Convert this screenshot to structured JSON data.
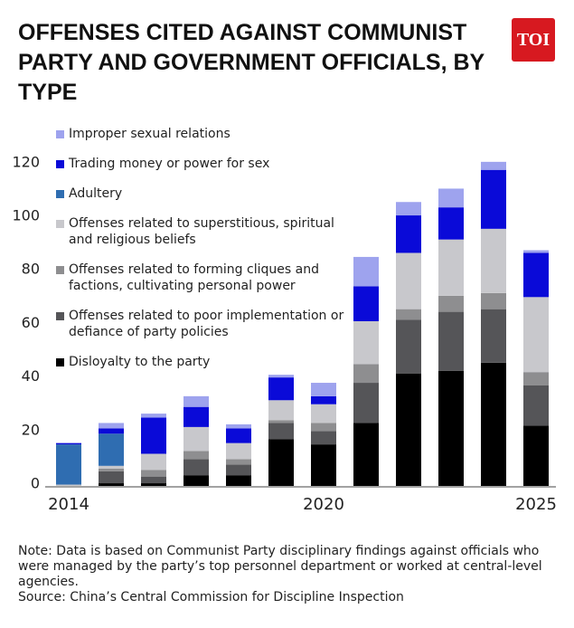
{
  "chart_data": {
    "type": "stacked_bar",
    "title": "OFFENSES CITED AGAINST COMMUNIST PARTY AND GOVERNMENT OFFICIALS, BY TYPE",
    "logo": "TOI",
    "categories": [
      "2014",
      null,
      null,
      null,
      null,
      null,
      "2020",
      null,
      null,
      null,
      null,
      "2025"
    ],
    "series": [
      {
        "name": "Improper sexual relations",
        "color": "#9ea3ee",
        "values": [
          0,
          2,
          1.5,
          4,
          1.5,
          1,
          5,
          11,
          5,
          7,
          3,
          1
        ]
      },
      {
        "name": "Trading money or power for sex",
        "color": "#0a0ad8",
        "values": [
          0.5,
          2,
          13.5,
          7.5,
          5.5,
          8.5,
          3,
          13,
          14,
          12,
          22,
          16.5
        ]
      },
      {
        "name": "Adultery",
        "color": "#2f6db1",
        "values": [
          15,
          12,
          0,
          0,
          0,
          0,
          0,
          0,
          0,
          0,
          0,
          0
        ]
      },
      {
        "name": "Offenses related to superstitious, spiritual and religious beliefs",
        "color": "#c8c8cc",
        "values": [
          0.5,
          1,
          6,
          9,
          6,
          7.5,
          7,
          16,
          21,
          21,
          24,
          28
        ]
      },
      {
        "name": "Offenses related to forming cliques and factions, cultivating personal power",
        "color": "#8e8e90",
        "values": [
          0,
          1,
          2.5,
          3,
          2,
          1,
          3,
          7,
          4,
          6,
          6,
          5
        ]
      },
      {
        "name": "Offenses related to poor implementation or defiance of party policies",
        "color": "#555558",
        "values": [
          0,
          4.5,
          2.5,
          6,
          4,
          6,
          5,
          15,
          20,
          22,
          20,
          15
        ]
      },
      {
        "name": "Disloyalty to the party",
        "color": "#000000",
        "values": [
          0,
          1,
          1,
          4,
          4,
          17.5,
          15.5,
          23.5,
          42,
          43,
          46,
          22.5
        ]
      }
    ],
    "ylim": [
      0,
      120
    ],
    "yticks": [
      0,
      20,
      40,
      60,
      80,
      100,
      120
    ],
    "grid": false,
    "note": "Note: Data is based on Communist Party disciplinary findings against officials who were managed by the party’s top personnel department or worked at central-level agencies.",
    "source": "Source: China’s Central Commission for Discipline Inspection"
  }
}
